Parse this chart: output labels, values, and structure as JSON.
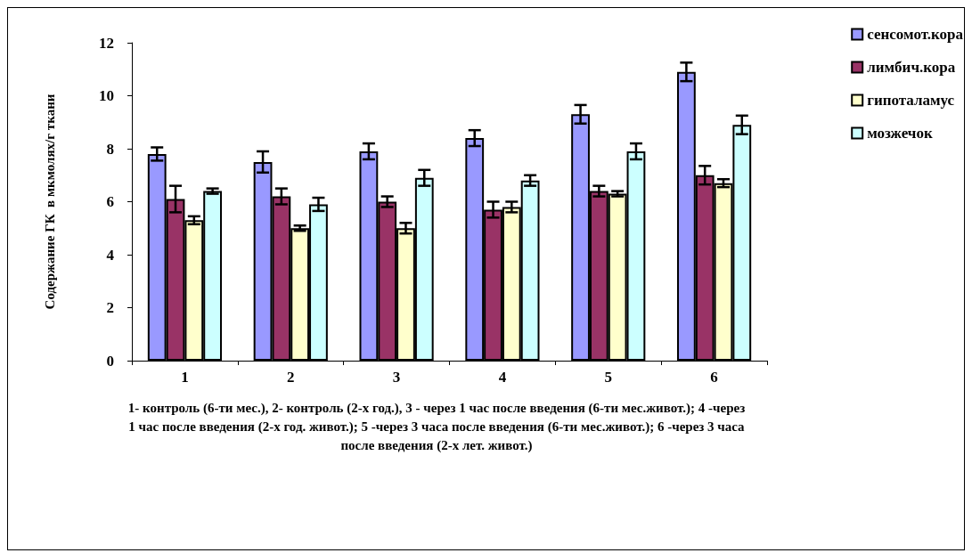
{
  "chart_data": {
    "type": "bar",
    "ylabel": "Содержание ГК  в мкмолях/г ткани",
    "categories": [
      "1",
      "2",
      "3",
      "4",
      "5",
      "6"
    ],
    "series": [
      {
        "name": "сенсомот.кора",
        "color": "#9999ff",
        "values": [
          7.8,
          7.5,
          7.9,
          8.4,
          9.3,
          10.9
        ],
        "errors": [
          0.25,
          0.4,
          0.3,
          0.3,
          0.35,
          0.35
        ]
      },
      {
        "name": "лимбич.кора",
        "color": "#993366",
        "values": [
          6.1,
          6.2,
          6.0,
          5.7,
          6.4,
          7.0
        ],
        "errors": [
          0.5,
          0.3,
          0.2,
          0.3,
          0.2,
          0.35
        ]
      },
      {
        "name": "гипоталамус",
        "color": "#ffffcc",
        "values": [
          5.3,
          5.0,
          5.0,
          5.8,
          6.3,
          6.7
        ],
        "errors": [
          0.15,
          0.1,
          0.2,
          0.2,
          0.1,
          0.15
        ]
      },
      {
        "name": "мозжечок",
        "color": "#ccffff",
        "values": [
          6.4,
          5.9,
          6.9,
          6.8,
          7.9,
          8.9
        ],
        "errors": [
          0.1,
          0.25,
          0.3,
          0.2,
          0.3,
          0.35
        ]
      }
    ],
    "ylim": [
      0,
      12
    ],
    "yticks": [
      0,
      2,
      4,
      6,
      8,
      10,
      12
    ],
    "grid": false,
    "legend": "top right",
    "annotations": [
      "1-  контроль (6-ти мес.), 2- контроль (2-х год.), 3 - через 1 час после введения (6-ти мес.живот.); 4 -через 1 час после введения (2-х год. живот.); 5 -через 3 часа после введения (6-ти мес.живот.); 6 -через 3 часа после введения (2-х лет. живот.)"
    ]
  }
}
